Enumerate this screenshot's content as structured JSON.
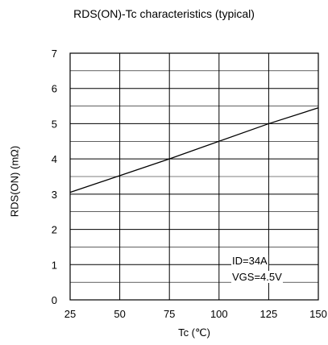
{
  "chart_data": {
    "type": "line",
    "title": "RDS(ON)-Tc characteristics (typical)",
    "xlabel": "Tc (℃)",
    "ylabel": "RDS(ON) (mΩ)",
    "xlim": [
      25,
      150
    ],
    "ylim": [
      0,
      7
    ],
    "x_ticks": [
      25,
      50,
      75,
      100,
      125,
      150
    ],
    "y_ticks": [
      0,
      1,
      2,
      3,
      4,
      5,
      6,
      7
    ],
    "grid": true,
    "series": [
      {
        "x": [
          25,
          75,
          125,
          150
        ],
        "y": [
          3.05,
          4.0,
          5.0,
          5.45
        ]
      }
    ],
    "annotations": [
      "ID=34A",
      "VGS=4.5V"
    ]
  }
}
